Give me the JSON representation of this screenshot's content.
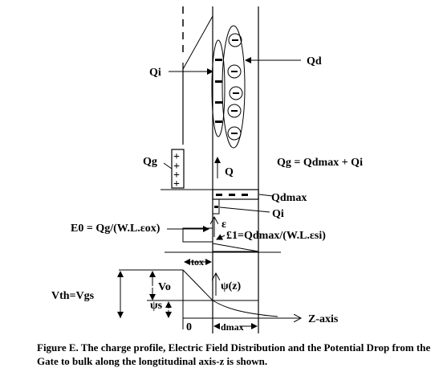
{
  "labels": {
    "qd": "Qd",
    "qi_top": "Qi",
    "qg": "Qg",
    "q_axis": "Q",
    "qg_equation": "Qg = Qdmax + Qi",
    "qdmax": "Qdmax",
    "qi_mid": "Qi",
    "epsilon": "ε",
    "e0_equation": "E0 = Qg/(W.L.εox)",
    "e1_equation": "£1=Qdmax/(W.L.εsi)",
    "tox": "tox",
    "vo": "Vo",
    "vth": "Vth=Vgs",
    "psi_z": "ψ(z)",
    "psi_s": "ψs",
    "zero": "0",
    "dmax": "dmax",
    "z_axis": "Z-axis"
  },
  "charges": {
    "plus_symbol": "+",
    "minus_symbol": "−"
  },
  "caption": "Figure E. The charge profile, Electric Field Distribution and the Potential Drop from the Gate to bulk along the longtitudinal axis-z is shown."
}
